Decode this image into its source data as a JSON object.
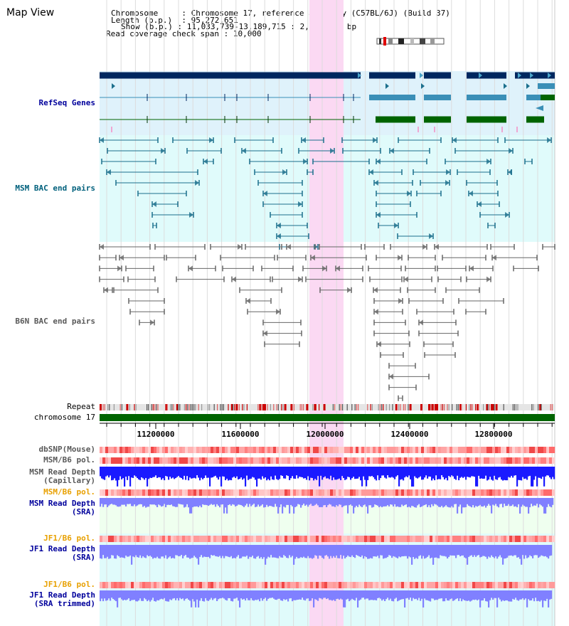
{
  "title": "Map View",
  "info": {
    "chromosome_label": "Chromosome",
    "chromosome_value": "Chromosome 17, reference assembly (C57BL/6J) (Build 37)",
    "length_label": "Length (b.p.)",
    "length_value": "95,272,651",
    "show_label": "Show (b.p.)",
    "show_value": "11,033,739-13,189,715 : 2,155,977 bp",
    "coverage_label": "Read coverage check span",
    "coverage_value": "10,000"
  },
  "tracks": {
    "refseq": "RefSeq Genes",
    "msm_bac": "MSM BAC end pairs",
    "b6n_bac": "B6N BAC end pairs",
    "repeat": "Repeat",
    "chromosome": "chromosome 17",
    "dbsnp": "dbSNP(Mouse)",
    "msm_b6_pol_1": "MSM/B6 pol.",
    "msm_depth_cap_1": "MSM Read Depth",
    "msm_depth_cap_2": "(Capillary)",
    "msm_b6_pol_2": "MSM/B6 pol.",
    "msm_depth_sra_1": "MSM Read Depth",
    "msm_depth_sra_2": "(SRA)",
    "jf1_b6_pol_1": "JF1/B6 pol.",
    "jf1_depth_sra_1": "JF1 Read Depth",
    "jf1_depth_sra_2": "(SRA)",
    "jf1_b6_pol_2": "JF1/B6 pol.",
    "jf1_depth_trim_1": "JF1 Read Depth",
    "jf1_depth_trim_2": "(SRA trimmed)"
  },
  "axis": {
    "ticks": [
      "11200000",
      "11600000",
      "12000000",
      "12400000",
      "12800000"
    ]
  },
  "colors": {
    "refseq_bg": "#dff2fb",
    "msm_bg": "#e0fbfb",
    "highlight": "#fbd9f3",
    "navy_gene": "#00275f",
    "blue_gene": "#3a8fb7",
    "green_gene": "#006400",
    "msm_pair": "#1b6f8c",
    "b6n_pair": "#666666",
    "chrom_bar": "#006400",
    "depth_blue": "#1a1aff",
    "depth_light": "#8080ff"
  }
}
